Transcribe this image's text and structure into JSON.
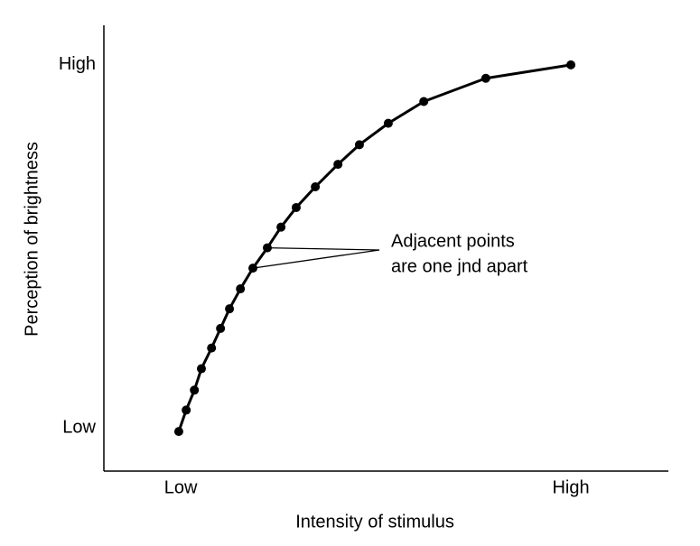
{
  "chart_data": {
    "type": "line",
    "x_label": "Intensity of stimulus",
    "y_label": "Perception of brightness",
    "annotation": [
      "Adjacent points",
      "are one jnd apart"
    ],
    "series": [
      {
        "color": "#000000",
        "x": [
          -0.5,
          1.4,
          3.5,
          5.3,
          7.9,
          10.2,
          12.5,
          15.3,
          18.5,
          22.2,
          25.7,
          29.6,
          34.5,
          40.3,
          45.8,
          53.2,
          62.3,
          78.2,
          100
        ],
        "values": [
          -1.0,
          4.9,
          10.4,
          16.3,
          22.0,
          27.4,
          32.8,
          38.3,
          44.0,
          49.6,
          55.3,
          60.7,
          66.4,
          72.6,
          78.0,
          83.9,
          89.9,
          96.3,
          100
        ]
      }
    ],
    "xlim": [
      -19.7,
      125
    ],
    "ylim": [
      -11.9,
      110.9
    ],
    "xticks": [
      {
        "value": 0,
        "label": "Low"
      },
      {
        "value": 100,
        "label": "High"
      }
    ],
    "yticks": [
      {
        "value": 0,
        "label": "Low"
      },
      {
        "value": 100,
        "label": "High"
      }
    ],
    "grid": false
  }
}
